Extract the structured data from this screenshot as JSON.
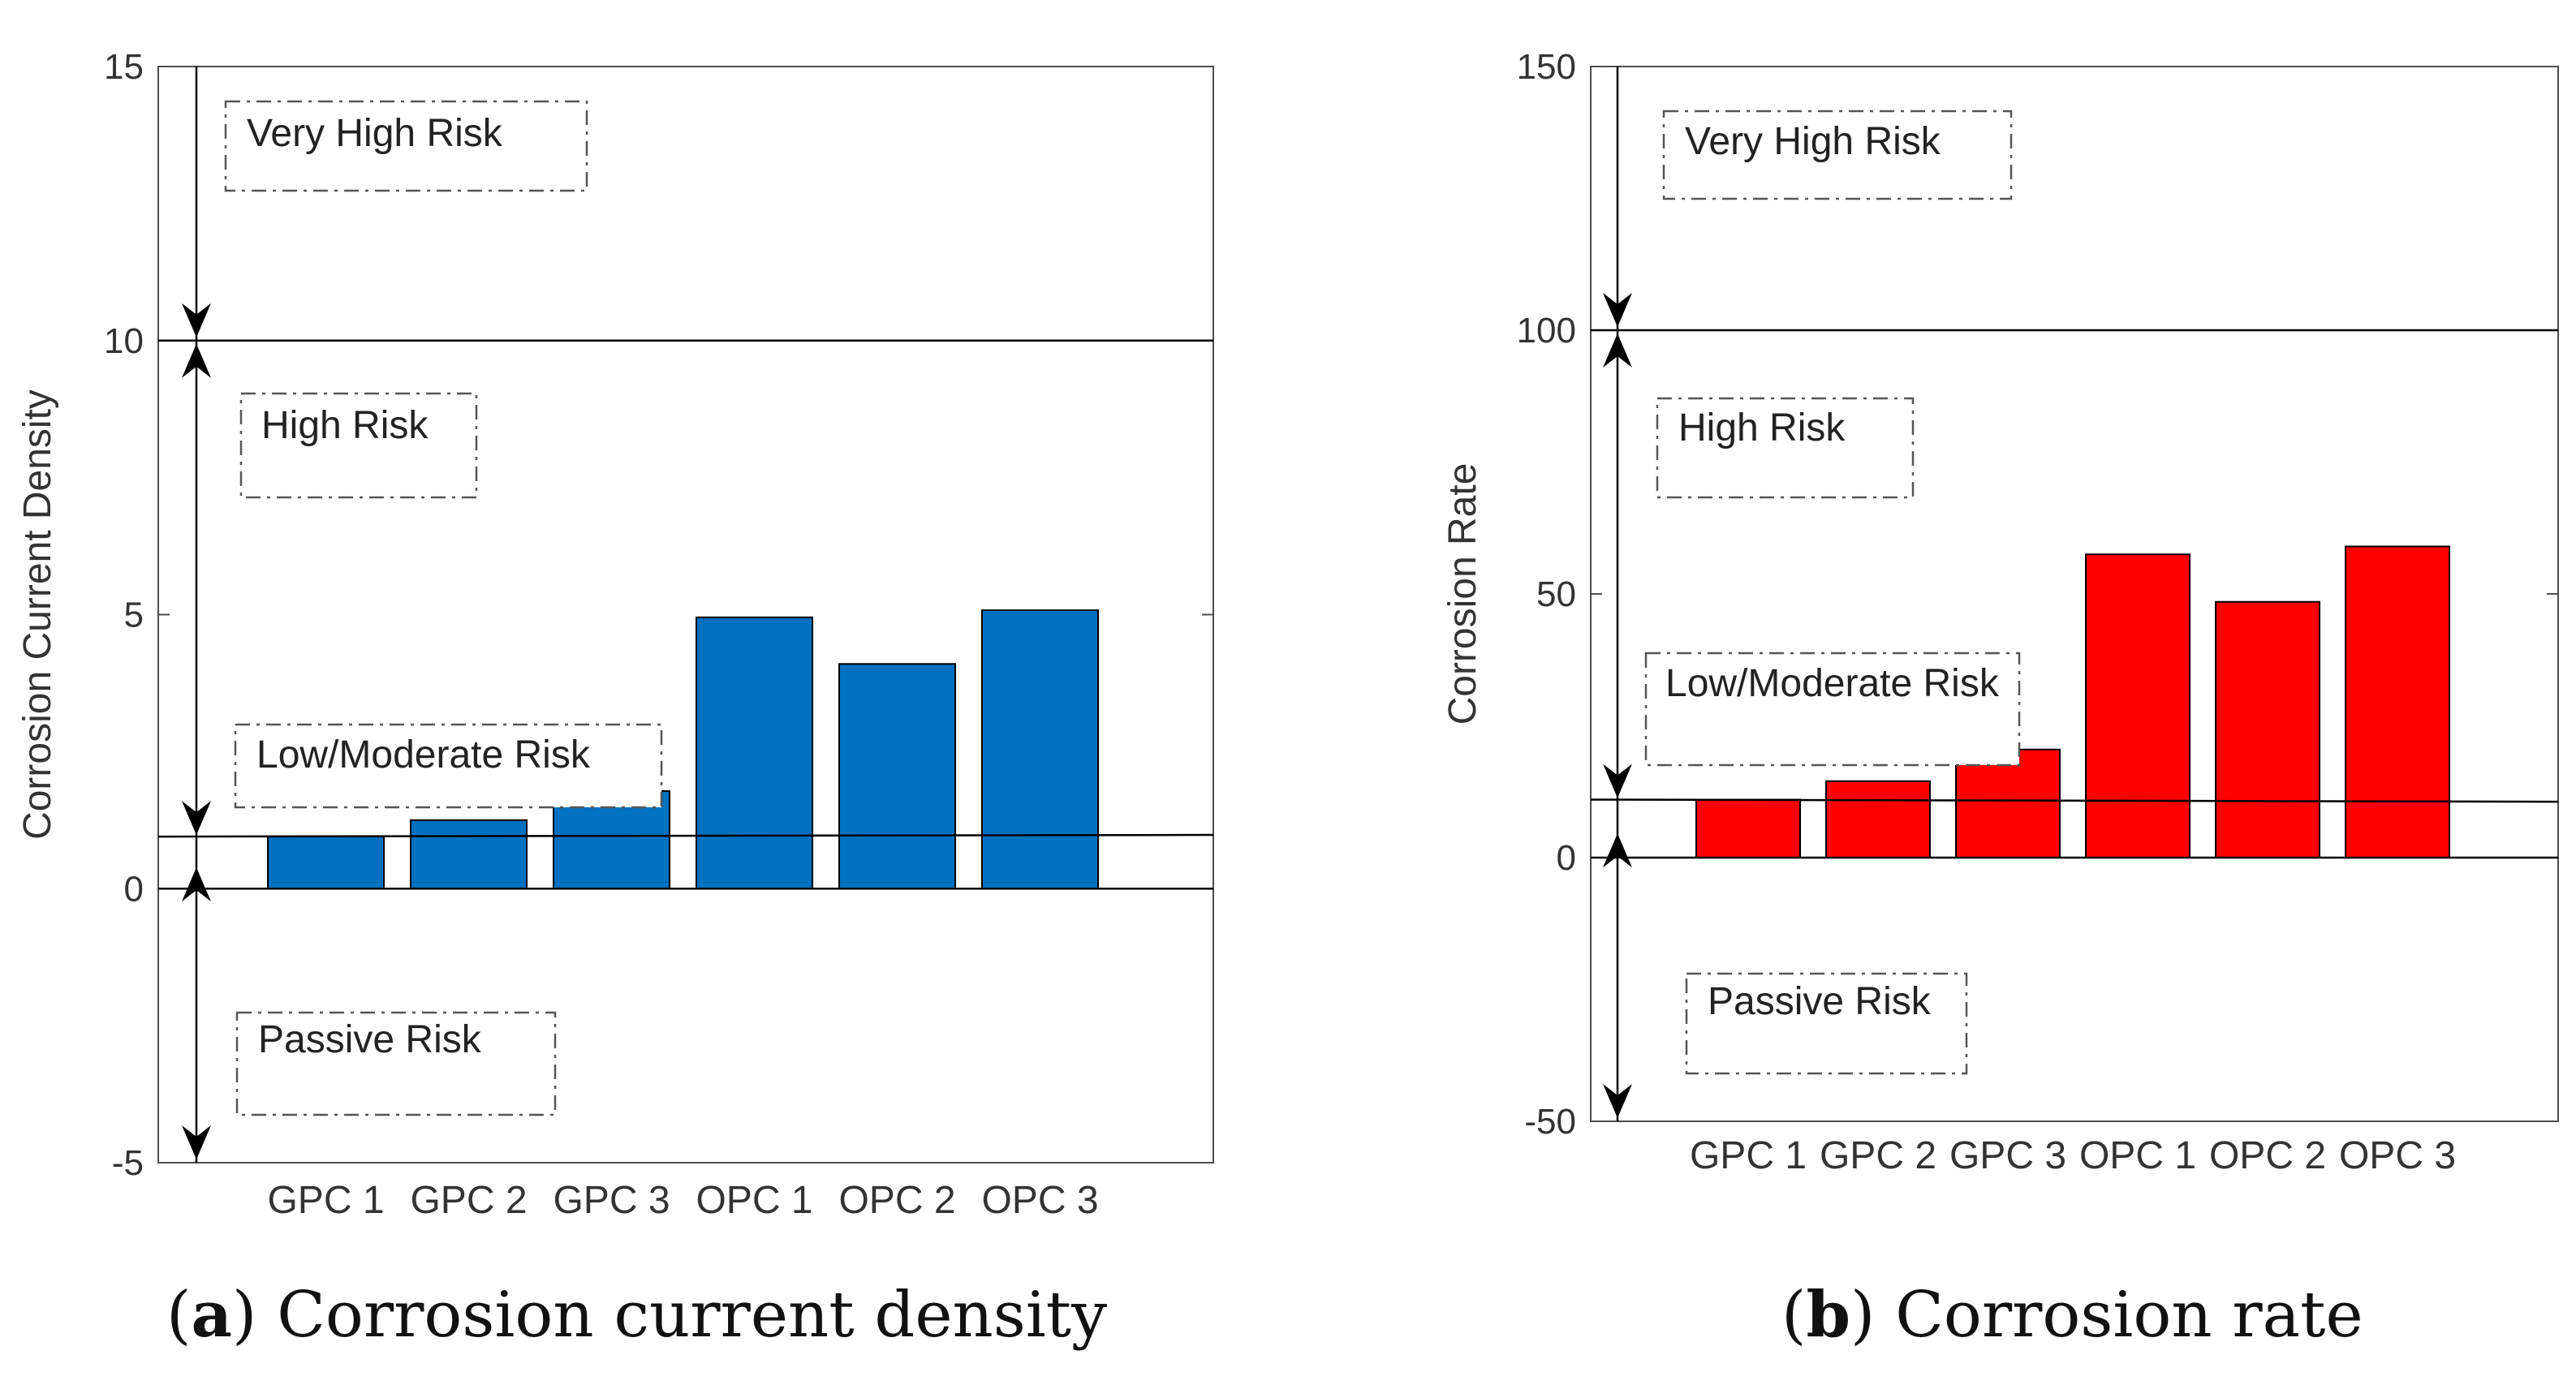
{
  "figure": {
    "panels": [
      {
        "letter": "a",
        "caption": "Corrosion current density",
        "bar_color": "#0070c0"
      },
      {
        "letter": "b",
        "caption": "Corrosion rate",
        "bar_color": "#ff0000"
      }
    ]
  },
  "chart_data": [
    {
      "type": "bar",
      "categories": [
        "GPC 1",
        "GPC 2",
        "GPC 3",
        "OPC 1",
        "OPC 2",
        "OPC 3"
      ],
      "values": [
        0.95,
        1.25,
        1.78,
        4.95,
        4.1,
        5.08
      ],
      "ylabel": "Corrosion Current Density",
      "ylim": [
        -5,
        15
      ],
      "yticks": [
        -5,
        0,
        5,
        10,
        15
      ],
      "grid": false,
      "threshold_lines": [
        0,
        0.95,
        10
      ],
      "risk_zones": [
        {
          "label": "Very High Risk",
          "from": 10,
          "to": 15
        },
        {
          "label": "High Risk",
          "from": 1,
          "to": 10
        },
        {
          "label": "Low/Moderate Risk",
          "from": 0.95,
          "to": 1.1
        },
        {
          "label": "Passive Risk",
          "from": -5,
          "to": 0
        }
      ]
    },
    {
      "type": "bar",
      "categories": [
        "GPC 1",
        "GPC 2",
        "GPC 3",
        "OPC 1",
        "OPC 2",
        "OPC 3"
      ],
      "values": [
        11,
        14.5,
        20.5,
        57.5,
        48.5,
        59
      ],
      "ylabel": "Corrosion Rate",
      "ylim": [
        -50,
        150
      ],
      "yticks": [
        -50,
        0,
        50,
        100,
        150
      ],
      "grid": false,
      "threshold_lines": [
        0,
        11,
        100
      ],
      "risk_zones": [
        {
          "label": "Very High Risk",
          "from": 100,
          "to": 150
        },
        {
          "label": "High Risk",
          "from": 11,
          "to": 100
        },
        {
          "label": "Low/Moderate Risk",
          "from": 11,
          "to": 20
        },
        {
          "label": "Passive Risk",
          "from": -50,
          "to": 0
        }
      ]
    }
  ]
}
